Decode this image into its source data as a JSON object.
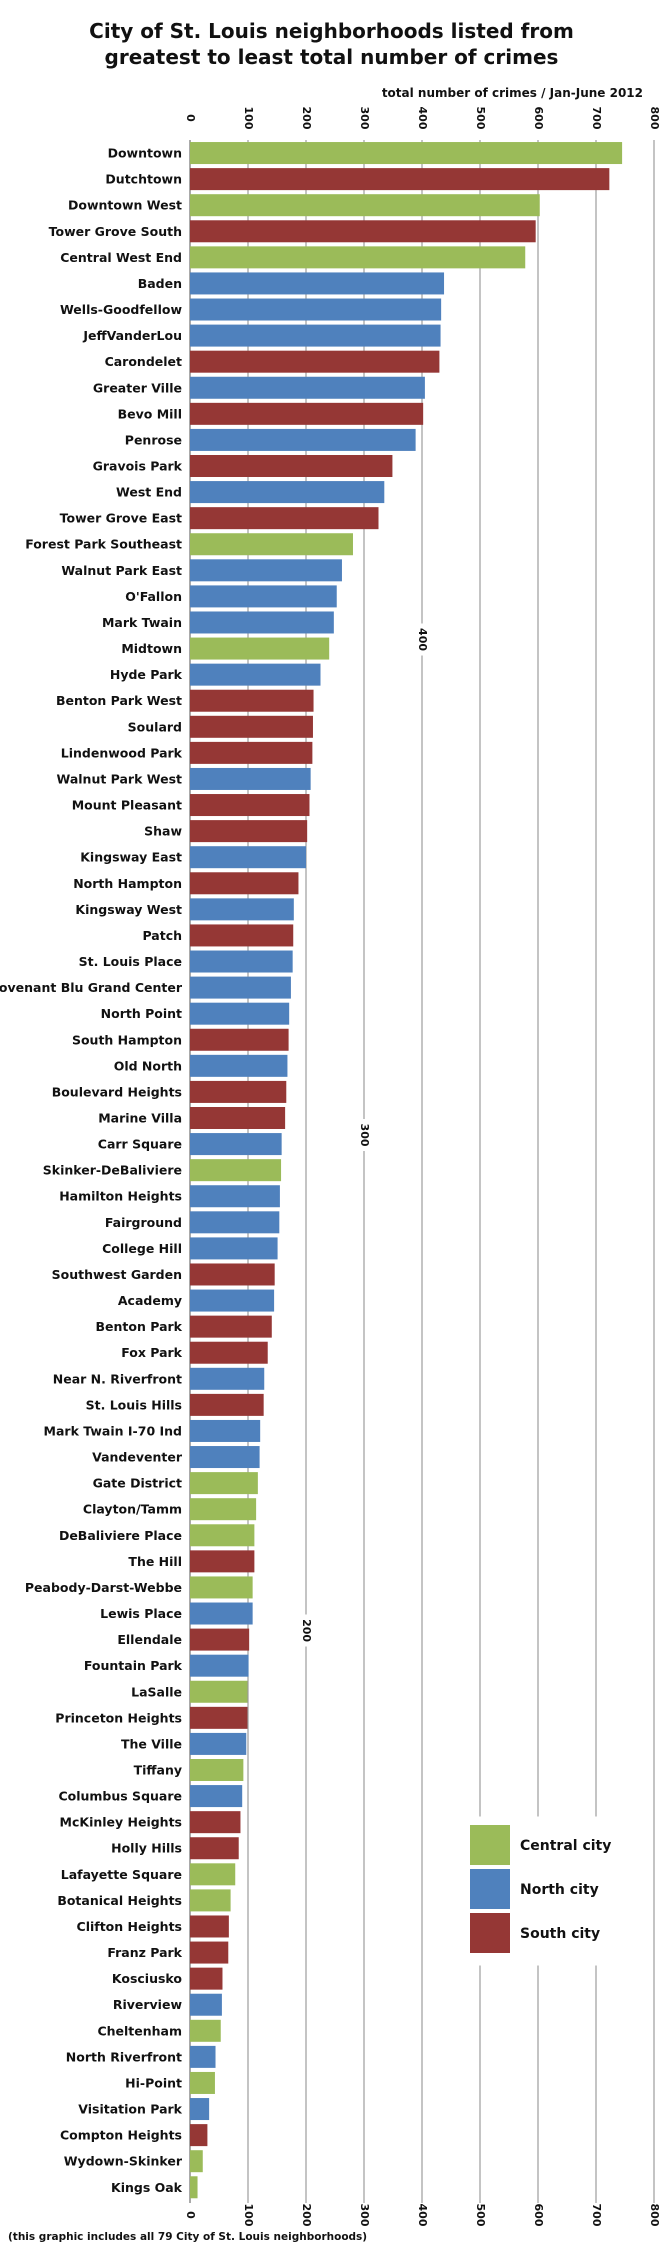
{
  "title_line1": "City of St. Louis neighborhoods listed from",
  "title_line2": "greatest to least total number of crimes",
  "footnote": "(this graphic includes all 79 City of St. Louis neighborhoods)",
  "colors": {
    "Central city": "#9bbb59",
    "North city": "#4f81bd",
    "South city": "#953735"
  },
  "chart_data": {
    "type": "bar",
    "orientation": "horizontal",
    "title": "City of St. Louis neighborhoods listed from greatest to least total number of crimes",
    "xlabel": "total number of crimes / Jan-June 2012",
    "ylabel": "",
    "xlim": [
      0,
      800
    ],
    "x_ticks": [
      0,
      100,
      200,
      300,
      400,
      500,
      600,
      700,
      800
    ],
    "grid": "vertical",
    "legend_position": "bottom-right",
    "legend": [
      "Central city",
      "North city",
      "South city"
    ],
    "inline_grid_labels": [
      {
        "tick": 400,
        "row_after": 18
      },
      {
        "tick": 300,
        "row_after": 37
      },
      {
        "tick": 200,
        "row_after": 56
      }
    ],
    "categories": [
      "Downtown",
      "Dutchtown",
      "Downtown West",
      "Tower Grove South",
      "Central West End",
      "Baden",
      "Wells-Goodfellow",
      "JeffVanderLou",
      "Carondelet",
      "Greater Ville",
      "Bevo Mill",
      "Penrose",
      "Gravois Park",
      "West End",
      "Tower Grove East",
      "Forest Park Southeast",
      "Walnut Park East",
      "O'Fallon",
      "Mark Twain",
      "Midtown",
      "Hyde Park",
      "Benton Park West",
      "Soulard",
      "Lindenwood Park",
      "Walnut Park West",
      "Mount Pleasant",
      "Shaw",
      "Kingsway East",
      "North Hampton",
      "Kingsway West",
      "Patch",
      "St. Louis Place",
      "Covenant Blu Grand Center",
      "North Point",
      "South Hampton",
      "Old North",
      "Boulevard Heights",
      "Marine Villa",
      "Carr Square",
      "Skinker-DeBaliviere",
      "Hamilton Heights",
      "Fairground",
      "College Hill",
      "Southwest Garden",
      "Academy",
      "Benton Park",
      "Fox Park",
      "Near N. Riverfront",
      "St. Louis Hills",
      "Mark Twain I-70 Ind",
      "Vandeventer",
      "Gate District",
      "Clayton/Tamm",
      "DeBaliviere Place",
      "The Hill",
      "Peabody-Darst-Webbe",
      "Lewis Place",
      "Ellendale",
      "Fountain Park",
      "LaSalle",
      "Princeton Heights",
      "The Ville",
      "Tiffany",
      "Columbus Square",
      "McKinley Heights",
      "Holly Hills",
      "Lafayette Square",
      "Botanical Heights",
      "Clifton Heights",
      "Franz Park",
      "Kosciusko",
      "Riverview",
      "Cheltenham",
      "North Riverfront",
      "Hi-Point",
      "Visitation Park",
      "Compton Heights",
      "Wydown-Skinker",
      "Kings Oak"
    ],
    "values": [
      745,
      723,
      603,
      596,
      578,
      438,
      433,
      432,
      430,
      405,
      402,
      389,
      349,
      335,
      325,
      281,
      262,
      253,
      248,
      240,
      225,
      213,
      212,
      211,
      208,
      206,
      202,
      200,
      187,
      179,
      178,
      177,
      174,
      171,
      170,
      168,
      166,
      164,
      158,
      157,
      155,
      154,
      151,
      146,
      145,
      141,
      134,
      128,
      127,
      121,
      120,
      117,
      114,
      111,
      111,
      108,
      108,
      102,
      101,
      99,
      99,
      97,
      92,
      90,
      87,
      84,
      78,
      70,
      67,
      66,
      56,
      55,
      53,
      44,
      43,
      33,
      30,
      22,
      13
    ],
    "groups": [
      "Central city",
      "South city",
      "Central city",
      "South city",
      "Central city",
      "North city",
      "North city",
      "North city",
      "South city",
      "North city",
      "South city",
      "North city",
      "South city",
      "North city",
      "South city",
      "Central city",
      "North city",
      "North city",
      "North city",
      "Central city",
      "North city",
      "South city",
      "South city",
      "South city",
      "North city",
      "South city",
      "South city",
      "North city",
      "South city",
      "North city",
      "South city",
      "North city",
      "North city",
      "North city",
      "South city",
      "North city",
      "South city",
      "South city",
      "North city",
      "Central city",
      "North city",
      "North city",
      "North city",
      "South city",
      "North city",
      "South city",
      "South city",
      "North city",
      "South city",
      "North city",
      "North city",
      "Central city",
      "Central city",
      "Central city",
      "South city",
      "Central city",
      "North city",
      "South city",
      "North city",
      "Central city",
      "South city",
      "North city",
      "Central city",
      "North city",
      "South city",
      "South city",
      "Central city",
      "Central city",
      "South city",
      "South city",
      "South city",
      "North city",
      "Central city",
      "North city",
      "Central city",
      "North city",
      "South city",
      "Central city",
      "Central city"
    ]
  }
}
